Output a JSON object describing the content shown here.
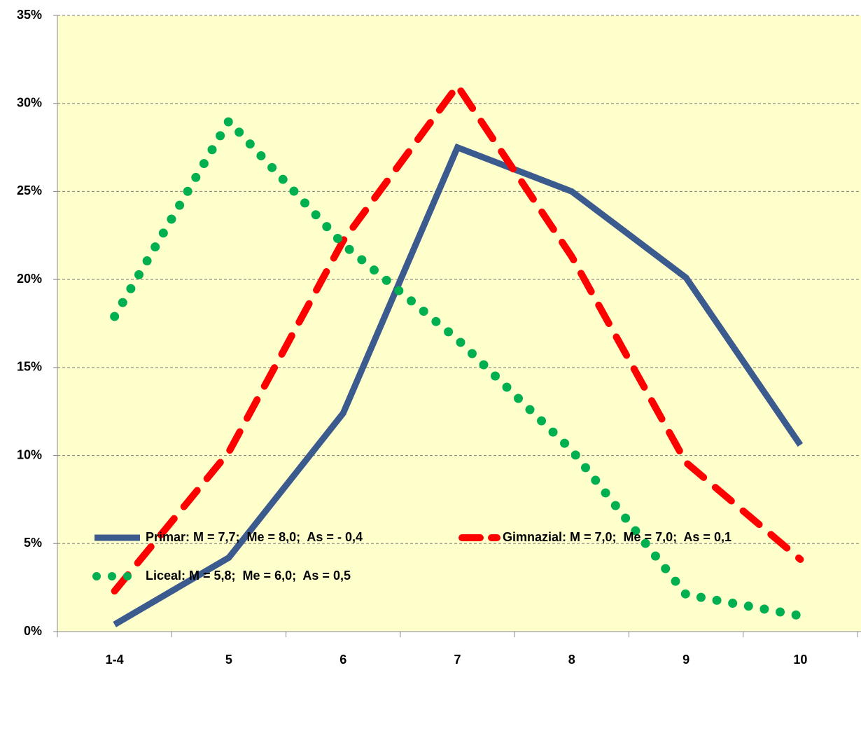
{
  "chart_data": {
    "type": "line",
    "categories": [
      "1-4",
      "5",
      "6",
      "7",
      "8",
      "9",
      "10"
    ],
    "series": [
      {
        "name": "Primar: M = 7,7;  Me = 8,0;  As = - 0,4",
        "color": "#3b5b8e",
        "style": "solid",
        "values": [
          0.4,
          4.2,
          12.4,
          27.5,
          25.0,
          20.1,
          10.6
        ]
      },
      {
        "name": "Gimnazial: M = 7,0;  Me = 7,0;  As = 0,1",
        "color": "#ff0000",
        "style": "dash",
        "values": [
          2.3,
          10.2,
          22.2,
          31.0,
          21.3,
          9.6,
          4.1
        ]
      },
      {
        "name": "Liceal: M = 5,8;  Me = 6,0;  As = 0,5",
        "color": "#00b050",
        "style": "dot",
        "values": [
          17.9,
          29.0,
          22.0,
          16.6,
          10.3,
          2.1,
          0.9
        ]
      }
    ],
    "ylim": [
      0,
      35
    ],
    "yticks": [
      {
        "value": 0,
        "label": "0%"
      },
      {
        "value": 5,
        "label": "5%"
      },
      {
        "value": 10,
        "label": "10%"
      },
      {
        "value": 15,
        "label": "15%"
      },
      {
        "value": 20,
        "label": "20%"
      },
      {
        "value": 25,
        "label": "25%"
      },
      {
        "value": 30,
        "label": "30%"
      },
      {
        "value": 35,
        "label": "35%"
      }
    ],
    "grid": true,
    "legend": "bottom"
  }
}
